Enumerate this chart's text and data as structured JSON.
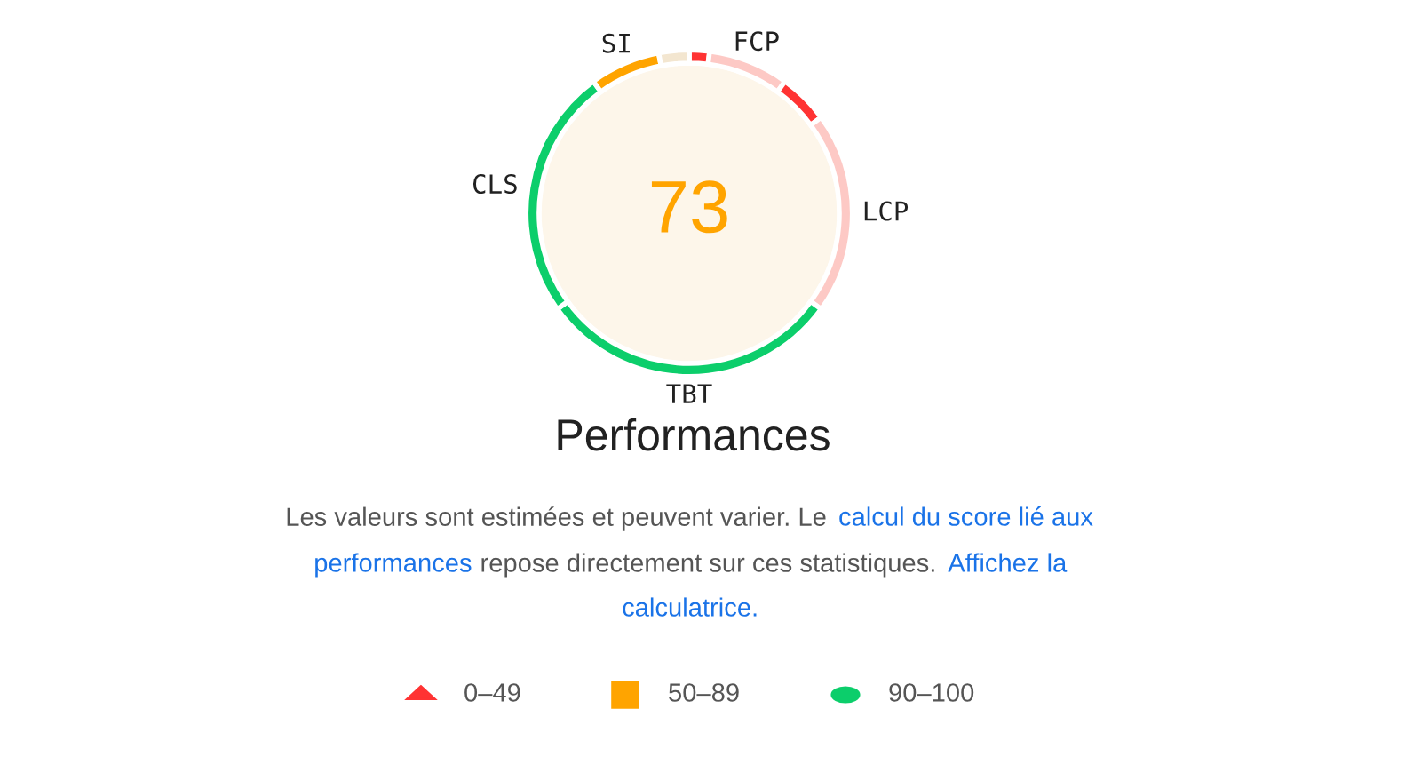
{
  "chart_data": {
    "type": "donut",
    "title": "Performances",
    "categories": [
      null,
      "FCP",
      null,
      "LCP",
      "TBT",
      "CLS",
      "SI",
      null
    ],
    "values": [
      2,
      8,
      5,
      20,
      30,
      25,
      7,
      3
    ],
    "colors": [
      "#ff3333",
      "#fdc9c5",
      "#ff3333",
      "#fdc9c5",
      "#0cce6b",
      "#0cce6b",
      "#ffa400",
      "#f3e6d0"
    ],
    "annotations": [
      "73",
      "Les valeurs sont estimées et peuvent varier. Le",
      "calcul du score lié aux",
      "performances",
      "repose directement sur ces statistiques.",
      "Affichez la",
      "calculatrice.",
      "0–49",
      "50–89",
      "90–100"
    ]
  }
}
